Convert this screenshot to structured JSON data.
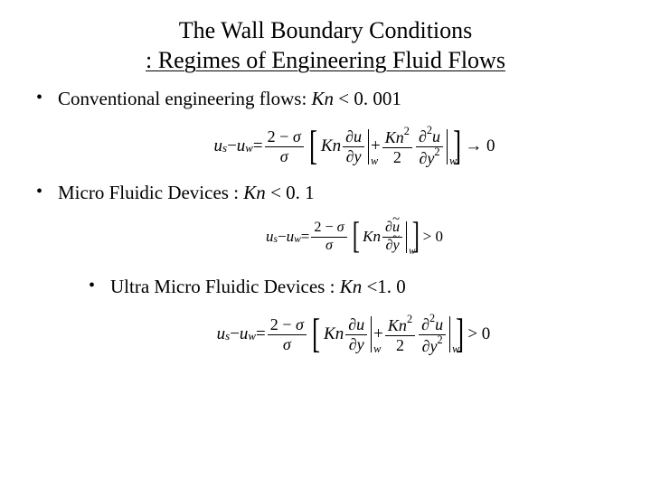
{
  "title": {
    "line1": "The Wall Boundary Conditions",
    "line2": " : Regimes of Engineering Fluid Flows"
  },
  "bullets": {
    "b1_prefix": "Conventional engineering flows: ",
    "b1_kn": "Kn",
    "b1_suffix": " < 0. 001",
    "b2_prefix": "Micro Fluidic Devices : ",
    "b2_kn": "Kn",
    "b2_suffix": " < 0. 1",
    "b3_prefix": "Ultra Micro Fluidic Devices : ",
    "b3_kn": "Kn",
    "b3_suffix": " <1. 0"
  },
  "eq": {
    "lhs_u": "u",
    "sub_s": "s",
    "minus": " − ",
    "sub_w": "w",
    "equals": " = ",
    "two_minus_sigma": "2 − σ",
    "sigma": "σ",
    "Kn": "Kn",
    "Kn2": "Kn",
    "sup2": "2",
    "two": "2",
    "partial": "∂",
    "partial2_u": "∂",
    "u": "u",
    "y": "y",
    "y2": "y",
    "plus": " + ",
    "arrow0": " → 0",
    "gt0": " > 0",
    "w": "w",
    "utilde": "u",
    "ytilde": "y"
  },
  "style": {
    "bg": "#ffffff",
    "text": "#000000",
    "title_fontsize": 26,
    "body_fontsize": 21,
    "eq_fontsize": 19,
    "eq_small_fontsize": 17,
    "font_family": "Times New Roman"
  }
}
